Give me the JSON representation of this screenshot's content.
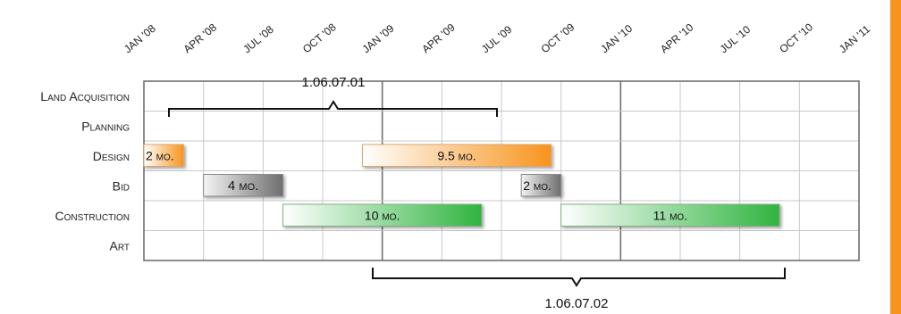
{
  "chart_data": {
    "type": "gantt",
    "x_ticks": [
      "Jan '08",
      "Apr '08",
      "Jul '08",
      "Oct '08",
      "Jan '09",
      "Apr '09",
      "Jul '09",
      "Oct '09",
      "Jan '10",
      "Apr '10",
      "Jul '10",
      "Oct '10",
      "Jan '11"
    ],
    "categories": [
      "Land Acquisition",
      "Planning",
      "Design",
      "Bid",
      "Construction",
      "Art"
    ],
    "xlim": [
      "2008-01",
      "2011-01"
    ],
    "bars": [
      {
        "category": "Design",
        "start": "2008-01",
        "end": "2008-03",
        "label": "2 mo.",
        "kind": "design"
      },
      {
        "category": "Design",
        "start": "2008-12",
        "end": "2009-09.5",
        "label": "9.5 mo.",
        "kind": "design"
      },
      {
        "category": "Bid",
        "start": "2008-04",
        "end": "2008-08",
        "label": "4 mo.",
        "kind": "bid"
      },
      {
        "category": "Bid",
        "start": "2009-08",
        "end": "2009-10",
        "label": "2 mo.",
        "kind": "bid"
      },
      {
        "category": "Construction",
        "start": "2008-08",
        "end": "2009-06",
        "label": "10 mo.",
        "kind": "construction"
      },
      {
        "category": "Construction",
        "start": "2009-10",
        "end": "2010-09",
        "label": "11 mo.",
        "kind": "construction"
      }
    ],
    "brackets": [
      {
        "label": "1.06.07.01",
        "start": "2008-01",
        "end": "2009-07",
        "position": "top"
      },
      {
        "label": "1.06.07.02",
        "start": "2008-12",
        "end": "2010-09",
        "position": "bottom"
      }
    ],
    "gridlines": true
  },
  "colors": {
    "design": "#f7941d",
    "bid": "#7a7a7a",
    "construction": "#39b54a",
    "accent_bar": "#f7941d",
    "grid": "#c8c8c8",
    "frame": "#707070"
  }
}
